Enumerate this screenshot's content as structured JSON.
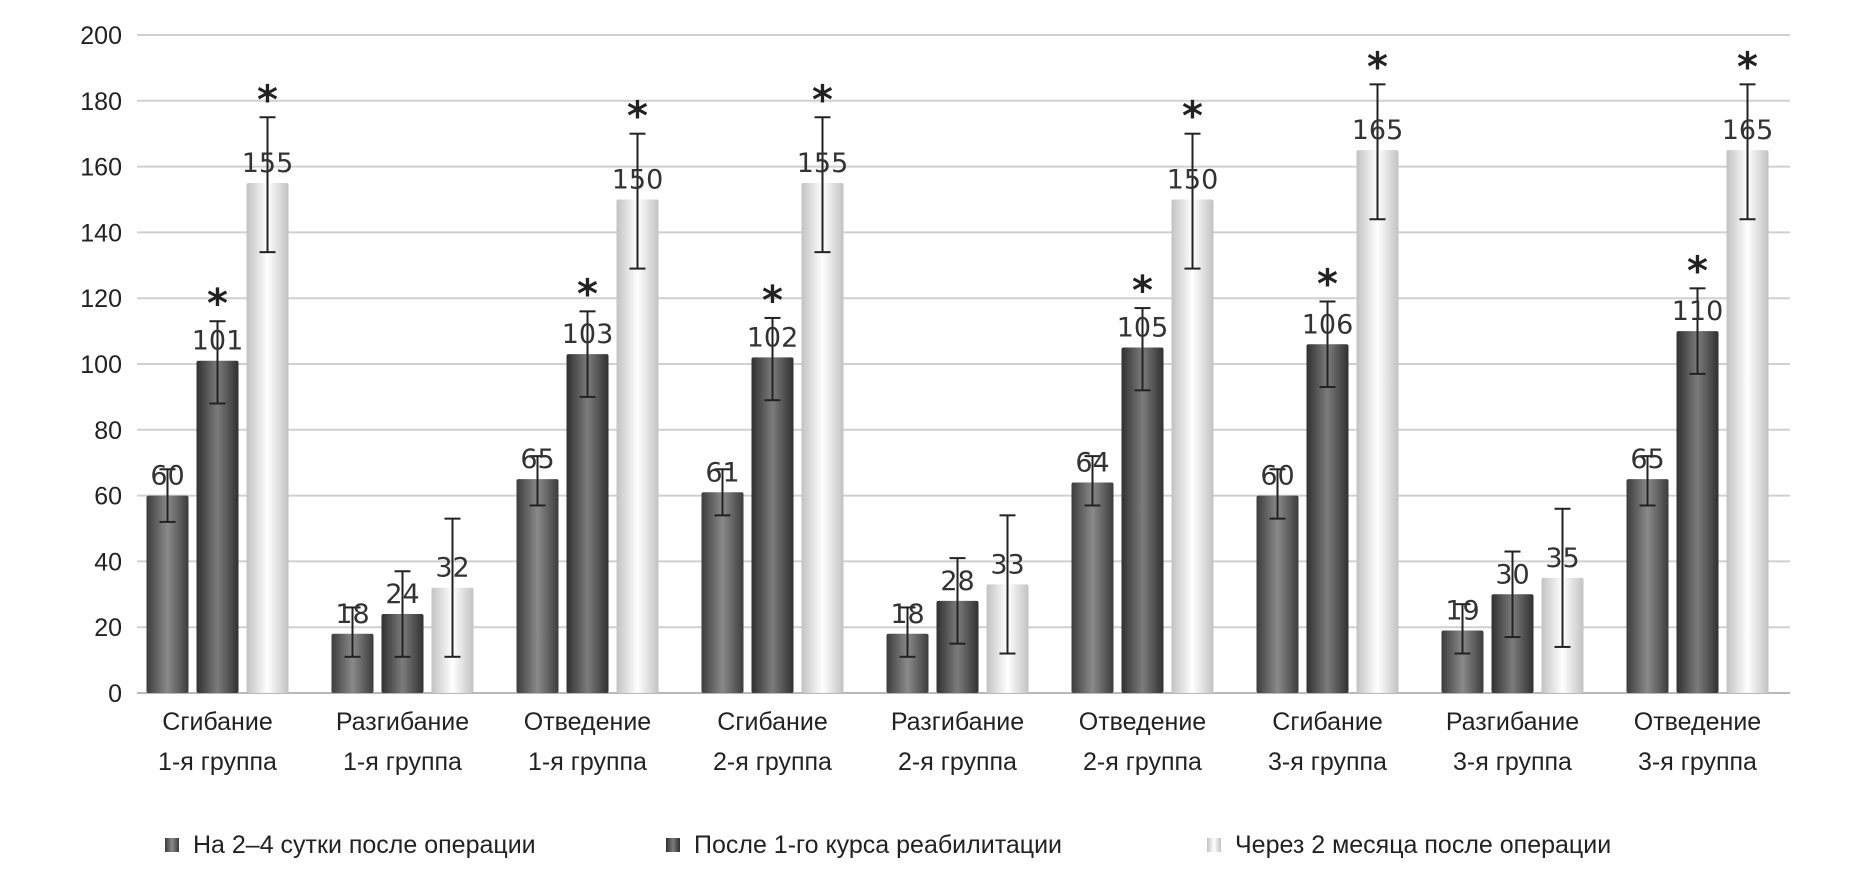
{
  "chart_data": {
    "type": "bar",
    "title": "",
    "xlabel": "",
    "ylabel": "",
    "ylim": [
      0,
      200
    ],
    "yticks": [
      0,
      20,
      40,
      60,
      80,
      100,
      120,
      140,
      160,
      180,
      200
    ],
    "grid": true,
    "legend_position": "bottom",
    "categories": [
      [
        "Сгибание",
        "1-я группа"
      ],
      [
        "Разгибание",
        "1-я группа"
      ],
      [
        "Отведение",
        "1-я группа"
      ],
      [
        "Сгибание",
        "2-я группа"
      ],
      [
        "Разгибание",
        "2-я группа"
      ],
      [
        "Отведение",
        "2-я группа"
      ],
      [
        "Сгибание",
        "3-я группа"
      ],
      [
        "Разгибание",
        "3-я группа"
      ],
      [
        "Отведение",
        "3-я группа"
      ]
    ],
    "significance_marker": "*",
    "series": [
      {
        "name": "На 2–4 сутки после операции",
        "color": "#6e6e6e",
        "values": [
          60,
          18,
          65,
          61,
          18,
          64,
          60,
          19,
          65
        ],
        "error_low": [
          52,
          11,
          57,
          54,
          11,
          57,
          53,
          12,
          57
        ],
        "error_high": [
          68,
          26,
          72,
          68,
          26,
          72,
          68,
          27,
          72
        ],
        "significant": [
          false,
          false,
          false,
          false,
          false,
          false,
          false,
          false,
          false
        ]
      },
      {
        "name": "После 1-го курса реабилитации",
        "color": "#555555",
        "values": [
          101,
          24,
          103,
          102,
          28,
          105,
          106,
          30,
          110
        ],
        "error_low": [
          88,
          11,
          90,
          89,
          15,
          92,
          93,
          17,
          97
        ],
        "error_high": [
          113,
          37,
          116,
          114,
          41,
          117,
          119,
          43,
          123
        ],
        "significant": [
          true,
          false,
          true,
          true,
          false,
          true,
          true,
          false,
          true
        ]
      },
      {
        "name": "Через 2 месяца после операции",
        "color": "#e2e2e2",
        "values": [
          155,
          32,
          150,
          155,
          33,
          150,
          165,
          35,
          165
        ],
        "error_low": [
          134,
          11,
          129,
          134,
          12,
          129,
          144,
          14,
          144
        ],
        "error_high": [
          175,
          53,
          170,
          175,
          54,
          170,
          185,
          56,
          185
        ],
        "significant": [
          true,
          false,
          true,
          true,
          false,
          true,
          true,
          false,
          true
        ]
      }
    ]
  }
}
